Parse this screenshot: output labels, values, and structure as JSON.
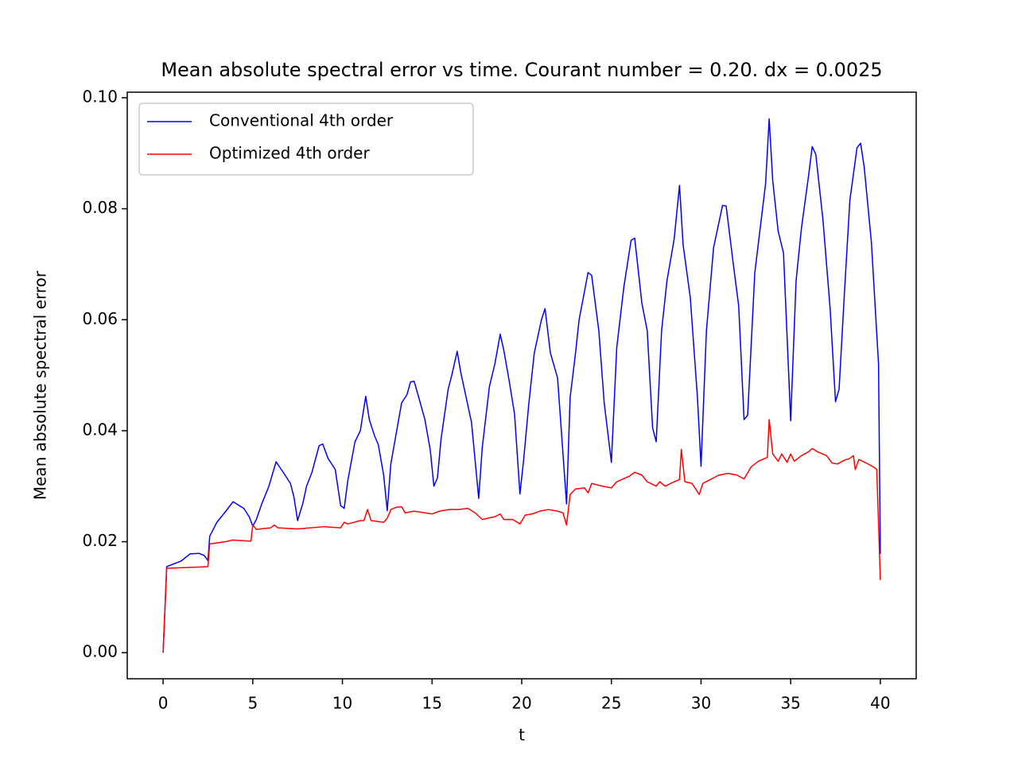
{
  "chart_data": {
    "type": "line",
    "title": "Mean absolute spectral error vs time. Courant number = 0.20. dx = 0.0025",
    "xlabel": "t",
    "ylabel": "Mean absolute spectral error",
    "xlim": [
      -2,
      42
    ],
    "ylim": [
      -0.0047,
      0.101
    ],
    "xticks": [
      0,
      5,
      10,
      15,
      20,
      25,
      30,
      35,
      40
    ],
    "yticks": [
      {
        "value": 0,
        "label": "0.00"
      },
      0.02,
      0.04,
      0.06,
      0.08,
      {
        "value": 0.1,
        "label": "0.10"
      }
    ],
    "grid": false,
    "legend": "upper left",
    "series": [
      {
        "name": "Conventional 4th order",
        "color": "#0000ff",
        "x": [
          0,
          0.2,
          1,
          1.5,
          2,
          2.3,
          2.5,
          2.6,
          3,
          3.5,
          3.9,
          4.5,
          4.8,
          5,
          5.2,
          5.5,
          5.9,
          6.3,
          6.8,
          7.1,
          7.3,
          7.5,
          7.8,
          8,
          8.3,
          8.7,
          8.9,
          9.2,
          9.6,
          9.9,
          10.1,
          10.3,
          10.7,
          11,
          11.3,
          11.5,
          11.8,
          12,
          12.3,
          12.5,
          12.7,
          13,
          13.3,
          13.6,
          13.8,
          14,
          14.3,
          14.6,
          14.9,
          15.1,
          15.3,
          15.5,
          15.9,
          16.1,
          16.4,
          16.6,
          16.9,
          17.2,
          17.6,
          17.8,
          18.2,
          18.5,
          18.8,
          19,
          19.3,
          19.6,
          19.9,
          20.1,
          20.4,
          20.7,
          21.1,
          21.3,
          21.6,
          22,
          22.5,
          22.7,
          23,
          23.2,
          23.7,
          23.9,
          24.3,
          24.6,
          25,
          25.3,
          25.7,
          26.1,
          26.3,
          26.7,
          27,
          27.3,
          27.5,
          27.8,
          28.1,
          28.5,
          28.8,
          29,
          29.4,
          29.8,
          30,
          30.3,
          30.7,
          31.2,
          31.4,
          31.8,
          32.1,
          32.4,
          32.6,
          33,
          33.3,
          33.6,
          33.8,
          34,
          34.3,
          34.6,
          35,
          35.3,
          35.6,
          36,
          36.2,
          36.4,
          36.8,
          37.2,
          37.5,
          37.7,
          38,
          38.3,
          38.7,
          38.9,
          39.1,
          39.5,
          39.9,
          40
        ],
        "values": [
          0,
          0.0155,
          0.0165,
          0.0178,
          0.0179,
          0.0175,
          0.0166,
          0.021,
          0.0235,
          0.0255,
          0.0272,
          0.026,
          0.0245,
          0.0228,
          0.024,
          0.0268,
          0.03,
          0.0344,
          0.032,
          0.0305,
          0.028,
          0.0238,
          0.027,
          0.03,
          0.0325,
          0.0373,
          0.0376,
          0.035,
          0.033,
          0.0265,
          0.026,
          0.031,
          0.038,
          0.04,
          0.0462,
          0.042,
          0.039,
          0.0375,
          0.032,
          0.0256,
          0.034,
          0.0395,
          0.045,
          0.0465,
          0.0488,
          0.0489,
          0.0455,
          0.042,
          0.0365,
          0.03,
          0.0315,
          0.0385,
          0.0475,
          0.05,
          0.0543,
          0.0505,
          0.046,
          0.0415,
          0.0278,
          0.037,
          0.048,
          0.052,
          0.0574,
          0.0545,
          0.049,
          0.043,
          0.0286,
          0.0345,
          0.045,
          0.054,
          0.06,
          0.062,
          0.054,
          0.0495,
          0.0268,
          0.046,
          0.054,
          0.06,
          0.0685,
          0.068,
          0.058,
          0.045,
          0.0343,
          0.055,
          0.066,
          0.0743,
          0.0747,
          0.063,
          0.058,
          0.0405,
          0.038,
          0.058,
          0.067,
          0.0745,
          0.0842,
          0.0735,
          0.064,
          0.046,
          0.0336,
          0.058,
          0.073,
          0.0806,
          0.0805,
          0.07,
          0.0625,
          0.042,
          0.0428,
          0.0685,
          0.0765,
          0.0845,
          0.0962,
          0.085,
          0.076,
          0.072,
          0.0418,
          0.067,
          0.0765,
          0.086,
          0.0912,
          0.0898,
          0.078,
          0.062,
          0.0452,
          0.0475,
          0.065,
          0.0815,
          0.091,
          0.0918,
          0.0875,
          0.074,
          0.052,
          0.0178
        ]
      },
      {
        "name": "Optimized 4th order",
        "color": "#ff0000",
        "x": [
          0,
          0.2,
          2.5,
          2.6,
          3.5,
          3.9,
          4.9,
          5,
          5.2,
          5.7,
          6,
          6.2,
          6.4,
          7.5,
          9,
          9.9,
          10.1,
          10.3,
          11,
          11.2,
          11.4,
          11.6,
          12.3,
          12.5,
          12.7,
          13,
          13.3,
          13.5,
          14,
          15,
          15.4,
          16,
          16.5,
          17,
          17.4,
          17.8,
          18.5,
          18.8,
          19,
          19.5,
          19.9,
          20.2,
          20.6,
          21,
          21.5,
          22,
          22.3,
          22.5,
          22.7,
          23,
          23.5,
          23.7,
          23.9,
          24.5,
          25,
          25.3,
          26,
          26.3,
          26.7,
          27,
          27.5,
          27.7,
          28,
          28.5,
          28.8,
          28.9,
          29.1,
          29.5,
          29.9,
          30.1,
          31,
          31.5,
          32,
          32.4,
          32.8,
          33.2,
          33.7,
          33.8,
          34,
          34.3,
          34.5,
          34.8,
          35,
          35.2,
          35.6,
          36,
          36.2,
          36.5,
          37,
          37.3,
          37.6,
          38,
          38.3,
          38.5,
          38.6,
          38.8,
          39.2,
          39.6,
          39.8,
          40
        ],
        "values": [
          0,
          0.0152,
          0.0155,
          0.0196,
          0.02,
          0.0203,
          0.0201,
          0.023,
          0.0222,
          0.0224,
          0.0225,
          0.023,
          0.0225,
          0.0223,
          0.0227,
          0.0225,
          0.0235,
          0.0232,
          0.0238,
          0.0238,
          0.0258,
          0.0238,
          0.0235,
          0.0242,
          0.0258,
          0.0262,
          0.0263,
          0.0252,
          0.0255,
          0.025,
          0.0255,
          0.0258,
          0.0258,
          0.026,
          0.0252,
          0.024,
          0.0245,
          0.025,
          0.024,
          0.024,
          0.0232,
          0.0248,
          0.025,
          0.0255,
          0.0258,
          0.0255,
          0.0252,
          0.023,
          0.0285,
          0.0295,
          0.0297,
          0.0288,
          0.0305,
          0.03,
          0.0297,
          0.0308,
          0.0318,
          0.0325,
          0.032,
          0.0308,
          0.03,
          0.0308,
          0.03,
          0.0308,
          0.0312,
          0.0366,
          0.0308,
          0.0305,
          0.0285,
          0.0305,
          0.032,
          0.0323,
          0.032,
          0.0313,
          0.0335,
          0.0345,
          0.0352,
          0.042,
          0.0358,
          0.0345,
          0.0358,
          0.0343,
          0.0358,
          0.0345,
          0.0355,
          0.0362,
          0.0368,
          0.0362,
          0.0355,
          0.0342,
          0.034,
          0.0347,
          0.035,
          0.0355,
          0.033,
          0.0348,
          0.0342,
          0.0335,
          0.033,
          0.0131
        ]
      }
    ]
  }
}
